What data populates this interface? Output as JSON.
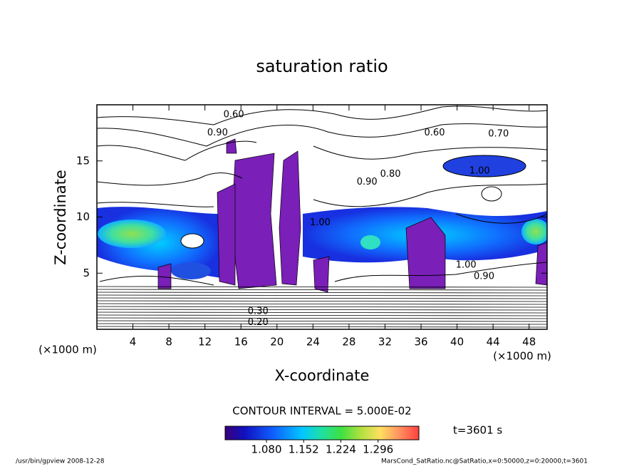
{
  "chart_data": {
    "type": "contour",
    "title": "saturation ratio",
    "x_label": "X-coordinate",
    "y_label": "Z-coordinate",
    "x_unit": "(×1000 m)",
    "y_unit": "(×1000 m)",
    "xlim": [
      0,
      50
    ],
    "ylim": [
      0,
      20
    ],
    "xticks": [
      4,
      8,
      12,
      16,
      20,
      24,
      28,
      32,
      36,
      40,
      44,
      48
    ],
    "yticks": [
      5,
      10,
      15
    ],
    "contour_interval_label": "CONTOUR INTERVAL = 5.000E-02",
    "colorbar": {
      "lim": [
        1.0,
        1.375
      ],
      "ticks": [
        {
          "value": 1.08,
          "label": "1.080"
        },
        {
          "value": 1.152,
          "label": "1.152"
        },
        {
          "value": 1.224,
          "label": "1.224"
        },
        {
          "value": 1.296,
          "label": "1.296"
        }
      ]
    },
    "contour_labels": [
      {
        "value": 0.6,
        "label": "0.60",
        "x": 15.2,
        "z": 19.1
      },
      {
        "value": 0.9,
        "label": "0.90",
        "x": 13.4,
        "z": 17.5
      },
      {
        "value": 0.6,
        "label": "0.60",
        "x": 37.5,
        "z": 17.5
      },
      {
        "value": 0.7,
        "label": "0.70",
        "x": 44.6,
        "z": 17.4
      },
      {
        "value": 1.0,
        "label": "1.00",
        "x": 42.5,
        "z": 14.1
      },
      {
        "value": 0.8,
        "label": "0.80",
        "x": 32.6,
        "z": 13.8
      },
      {
        "value": 0.9,
        "label": "0.90",
        "x": 30.0,
        "z": 13.1
      },
      {
        "value": 1.0,
        "label": "1.00",
        "x": 24.8,
        "z": 9.5
      },
      {
        "value": 1.0,
        "label": "1.00",
        "x": 41.0,
        "z": 5.7
      },
      {
        "value": 0.9,
        "label": "0.90",
        "x": 43.0,
        "z": 4.7
      },
      {
        "value": 0.3,
        "label": "0.30",
        "x": 17.9,
        "z": 1.6
      },
      {
        "value": 0.2,
        "label": "0.20",
        "x": 17.9,
        "z": 0.6
      }
    ],
    "time_label": "t=3601 s",
    "footer_left": "/usr/bin/gpview  2008-12-28",
    "footer_right": "MarsCond_SatRatio.nc@SatRatio,x=0:50000,z=0:20000,t=3601"
  }
}
